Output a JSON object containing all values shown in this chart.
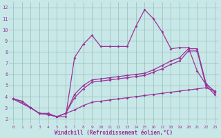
{
  "xlabel": "Windchill (Refroidissement éolien,°C)",
  "bg_color": "#c8e8e8",
  "line_color": "#993399",
  "grid_color": "#99bbbb",
  "x_ticks": [
    0,
    1,
    2,
    3,
    4,
    5,
    6,
    7,
    8,
    9,
    10,
    11,
    12,
    13,
    14,
    15,
    16,
    17,
    18,
    19,
    20,
    21,
    22,
    23
  ],
  "y_ticks": [
    2,
    3,
    4,
    5,
    6,
    7,
    8,
    9,
    10,
    11,
    12
  ],
  "xlim": [
    -0.5,
    23.5
  ],
  "ylim": [
    1.5,
    12.5
  ],
  "series": [
    {
      "x": [
        0,
        1,
        2,
        3,
        4,
        5,
        6,
        7,
        8,
        9,
        10,
        11,
        12,
        13,
        14,
        15,
        16,
        17,
        18,
        19,
        20,
        21,
        22,
        23
      ],
      "y": [
        3.8,
        3.6,
        3.0,
        2.5,
        2.5,
        2.2,
        2.2,
        7.5,
        8.7,
        9.5,
        8.5,
        8.5,
        8.5,
        8.5,
        10.3,
        11.8,
        11.0,
        9.8,
        8.3,
        8.4,
        8.4,
        6.3,
        5.1,
        4.5
      ]
    },
    {
      "x": [
        0,
        2,
        3,
        4,
        5,
        6,
        7,
        8,
        9,
        10,
        11,
        12,
        13,
        14,
        15,
        16,
        17,
        18,
        19,
        20,
        21,
        22,
        23
      ],
      "y": [
        3.8,
        3.0,
        2.5,
        2.4,
        2.2,
        2.5,
        4.2,
        5.0,
        5.5,
        5.6,
        5.7,
        5.8,
        5.9,
        6.0,
        6.1,
        6.4,
        6.8,
        7.2,
        7.5,
        8.3,
        8.3,
        5.2,
        4.4
      ]
    },
    {
      "x": [
        0,
        2,
        3,
        4,
        5,
        6,
        7,
        8,
        9,
        10,
        11,
        12,
        13,
        14,
        15,
        16,
        17,
        18,
        19,
        20,
        21,
        22,
        23
      ],
      "y": [
        3.8,
        3.0,
        2.5,
        2.4,
        2.2,
        2.5,
        3.9,
        4.7,
        5.3,
        5.4,
        5.5,
        5.6,
        5.7,
        5.8,
        5.9,
        6.2,
        6.5,
        6.9,
        7.2,
        8.1,
        8.1,
        5.0,
        4.2
      ]
    },
    {
      "x": [
        0,
        1,
        2,
        3,
        4,
        5,
        6,
        7,
        8,
        9,
        10,
        11,
        12,
        13,
        14,
        15,
        16,
        17,
        18,
        19,
        20,
        21,
        22,
        23
      ],
      "y": [
        3.8,
        3.6,
        3.0,
        2.5,
        2.4,
        2.2,
        2.5,
        2.8,
        3.2,
        3.5,
        3.6,
        3.7,
        3.8,
        3.9,
        4.0,
        4.1,
        4.2,
        4.3,
        4.4,
        4.5,
        4.6,
        4.7,
        4.8,
        4.5
      ]
    }
  ]
}
